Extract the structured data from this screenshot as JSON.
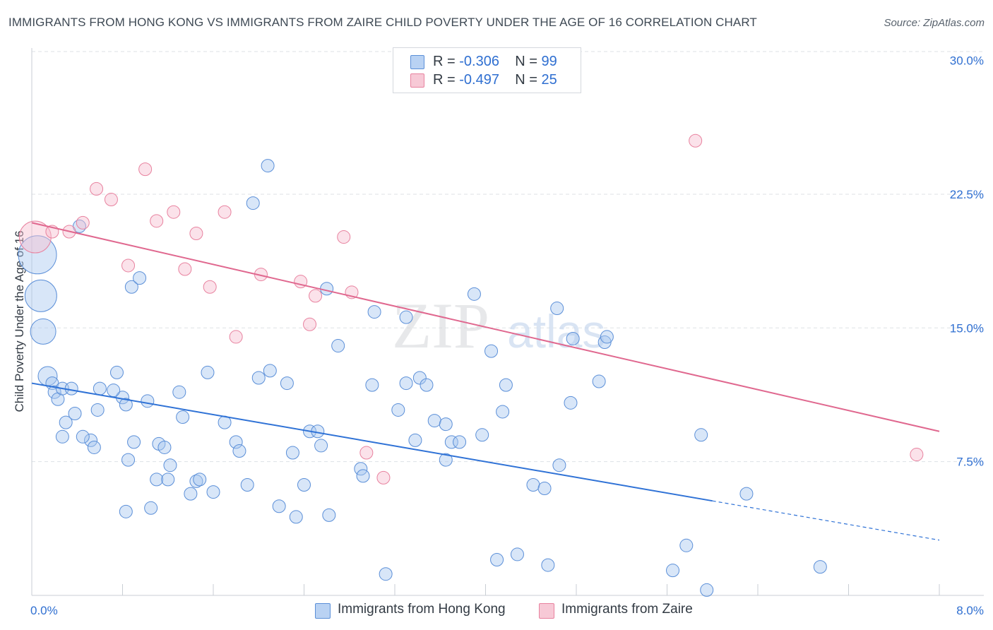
{
  "title": "IMMIGRANTS FROM HONG KONG VS IMMIGRANTS FROM ZAIRE CHILD POVERTY UNDER THE AGE OF 16 CORRELATION CHART",
  "source": "Source: ZipAtlas.com",
  "watermark": {
    "zip": "ZIP",
    "atlas": "atlas"
  },
  "legend_stats": [
    {
      "r_label": "R =",
      "r_value": "-0.306",
      "n_label": "N =",
      "n_value": "99"
    },
    {
      "r_label": "R =",
      "r_value": "-0.497",
      "n_label": "N =",
      "n_value": "25"
    }
  ],
  "chart_data": {
    "type": "scatter",
    "title": "IMMIGRANTS FROM HONG KONG VS IMMIGRANTS FROM ZAIRE CHILD POVERTY UNDER THE AGE OF 16 CORRELATION CHART",
    "xlabel": "",
    "ylabel": "Child Poverty Under the Age of 16",
    "xlim": [
      0,
      8
    ],
    "ylim": [
      0,
      30.5
    ],
    "x_tick_labels": [
      "0.0%",
      "8.0%"
    ],
    "y_ticks": [
      7.5,
      15.0,
      22.5,
      30.0
    ],
    "y_tick_labels": [
      "7.5%",
      "15.0%",
      "22.5%",
      "30.0%"
    ],
    "grid": "horizontal dashed",
    "legend_position": "bottom-center",
    "colors": {
      "hong_kong": "#5b8fd8",
      "zaire": "#e8829f",
      "hong_kong_line": "#2f72d6",
      "zaire_line": "#e0688f",
      "axis_value": "#2f6fd1"
    },
    "series": [
      {
        "name": "Immigrants from Hong Kong",
        "r": -0.306,
        "n": 99,
        "trend": {
          "x0": 0,
          "y0": 11.9,
          "x1": 6.0,
          "y1": 5.3,
          "dashed_to_x": 8.0
        },
        "points": [
          [
            0.05,
            19.1,
            3
          ],
          [
            0.08,
            16.8,
            2.5
          ],
          [
            0.1,
            14.8,
            2
          ],
          [
            0.14,
            12.3,
            1.5
          ],
          [
            0.18,
            11.9,
            1
          ],
          [
            0.2,
            11.4,
            1
          ],
          [
            0.23,
            11.0,
            1
          ],
          [
            0.27,
            11.6,
            1
          ],
          [
            0.35,
            11.6,
            1
          ],
          [
            0.3,
            9.7,
            1
          ],
          [
            0.38,
            10.2,
            1
          ],
          [
            0.27,
            8.9,
            1
          ],
          [
            0.52,
            8.7,
            1
          ],
          [
            0.55,
            8.3,
            1
          ],
          [
            0.45,
            8.9,
            1
          ],
          [
            0.6,
            11.6,
            1
          ],
          [
            0.58,
            10.4,
            1
          ],
          [
            0.75,
            12.5,
            1
          ],
          [
            0.8,
            11.1,
            1
          ],
          [
            0.72,
            11.5,
            1
          ],
          [
            0.83,
            10.7,
            1
          ],
          [
            0.85,
            7.6,
            1
          ],
          [
            0.88,
            17.3,
            1
          ],
          [
            0.95,
            17.8,
            1
          ],
          [
            0.9,
            8.6,
            1
          ],
          [
            1.02,
            10.9,
            1
          ],
          [
            1.05,
            4.9,
            1
          ],
          [
            0.83,
            4.7,
            1
          ],
          [
            1.1,
            6.5,
            1
          ],
          [
            1.2,
            6.5,
            1
          ],
          [
            1.12,
            8.5,
            1
          ],
          [
            1.17,
            8.3,
            1
          ],
          [
            1.22,
            7.3,
            1
          ],
          [
            1.3,
            11.4,
            1
          ],
          [
            1.33,
            10.0,
            1
          ],
          [
            1.4,
            5.7,
            1
          ],
          [
            1.45,
            6.4,
            1
          ],
          [
            1.48,
            6.5,
            1
          ],
          [
            1.55,
            12.5,
            1
          ],
          [
            1.6,
            5.8,
            1
          ],
          [
            1.7,
            9.7,
            1
          ],
          [
            1.8,
            8.6,
            1
          ],
          [
            1.83,
            8.1,
            1
          ],
          [
            1.9,
            6.2,
            1
          ],
          [
            1.95,
            22.0,
            1
          ],
          [
            2.0,
            12.2,
            1
          ],
          [
            2.1,
            12.6,
            1
          ],
          [
            2.08,
            24.1,
            1
          ],
          [
            2.18,
            5.0,
            1
          ],
          [
            2.25,
            11.9,
            1
          ],
          [
            2.3,
            8.0,
            1
          ],
          [
            2.33,
            4.4,
            1
          ],
          [
            2.4,
            6.2,
            1
          ],
          [
            2.45,
            9.2,
            1
          ],
          [
            2.52,
            9.2,
            1
          ],
          [
            2.55,
            8.4,
            1
          ],
          [
            2.6,
            17.2,
            1
          ],
          [
            2.62,
            4.5,
            1
          ],
          [
            2.7,
            14.0,
            1
          ],
          [
            2.9,
            7.1,
            1
          ],
          [
            2.92,
            6.7,
            1
          ],
          [
            3.0,
            11.8,
            1
          ],
          [
            3.02,
            15.9,
            1
          ],
          [
            3.12,
            1.2,
            1
          ],
          [
            3.23,
            10.4,
            1
          ],
          [
            3.3,
            15.6,
            1
          ],
          [
            3.3,
            11.9,
            1
          ],
          [
            3.38,
            8.7,
            1
          ],
          [
            3.42,
            12.2,
            1
          ],
          [
            3.48,
            11.8,
            1
          ],
          [
            3.55,
            9.8,
            1
          ],
          [
            3.65,
            7.6,
            1
          ],
          [
            3.65,
            9.6,
            1
          ],
          [
            3.7,
            8.6,
            1
          ],
          [
            3.77,
            8.6,
            1
          ],
          [
            3.9,
            16.9,
            1
          ],
          [
            3.97,
            9.0,
            1
          ],
          [
            4.05,
            13.7,
            1
          ],
          [
            4.1,
            2.0,
            1
          ],
          [
            4.15,
            10.3,
            1
          ],
          [
            4.18,
            11.8,
            1
          ],
          [
            4.28,
            2.3,
            1
          ],
          [
            4.42,
            6.2,
            1
          ],
          [
            4.52,
            6.0,
            1
          ],
          [
            4.55,
            1.7,
            1
          ],
          [
            4.63,
            16.1,
            1
          ],
          [
            4.65,
            7.3,
            1
          ],
          [
            4.75,
            10.8,
            1
          ],
          [
            4.77,
            14.4,
            1
          ],
          [
            5.0,
            12.0,
            1
          ],
          [
            5.05,
            14.2,
            1
          ],
          [
            5.07,
            14.5,
            1
          ],
          [
            5.65,
            1.4,
            1
          ],
          [
            5.77,
            2.8,
            1
          ],
          [
            5.9,
            9.0,
            1
          ],
          [
            5.95,
            0.3,
            1
          ],
          [
            6.3,
            5.7,
            1
          ],
          [
            6.95,
            1.6,
            1
          ],
          [
            0.42,
            20.7,
            1
          ]
        ]
      },
      {
        "name": "Immigrants from Zaire",
        "r": -0.497,
        "n": 25,
        "trend": {
          "x0": 0,
          "y0": 20.9,
          "x1": 8.0,
          "y1": 9.2
        },
        "points": [
          [
            0.03,
            20.1,
            2.5
          ],
          [
            0.18,
            20.4,
            1
          ],
          [
            0.33,
            20.4,
            1
          ],
          [
            0.45,
            20.9,
            1
          ],
          [
            0.57,
            22.8,
            1
          ],
          [
            0.7,
            22.2,
            1
          ],
          [
            0.85,
            18.5,
            1
          ],
          [
            1.0,
            23.9,
            1
          ],
          [
            1.1,
            21.0,
            1
          ],
          [
            1.25,
            21.5,
            1
          ],
          [
            1.35,
            18.3,
            1
          ],
          [
            1.45,
            20.3,
            1
          ],
          [
            1.57,
            17.3,
            1
          ],
          [
            1.7,
            21.5,
            1
          ],
          [
            1.8,
            14.5,
            1
          ],
          [
            2.02,
            18.0,
            1
          ],
          [
            2.37,
            17.6,
            1
          ],
          [
            2.45,
            15.2,
            1
          ],
          [
            2.5,
            16.8,
            1
          ],
          [
            2.75,
            20.1,
            1
          ],
          [
            2.82,
            17.0,
            1
          ],
          [
            2.95,
            8.0,
            1
          ],
          [
            3.1,
            6.6,
            1
          ],
          [
            5.85,
            25.5,
            1
          ],
          [
            7.8,
            7.9,
            1
          ]
        ]
      }
    ]
  }
}
